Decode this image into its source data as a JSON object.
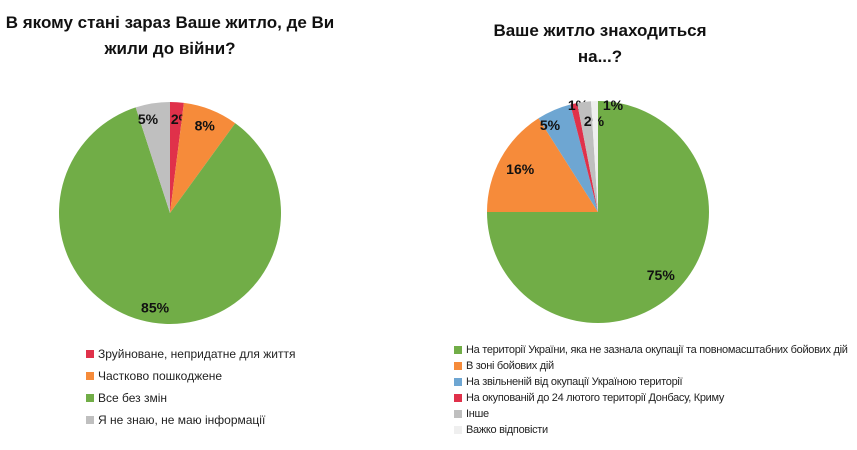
{
  "chart_data": [
    {
      "type": "pie",
      "title": "В якому стані зараз Ваше житло, де Ви жили до війни?",
      "legend_position": "bottom",
      "slices": [
        {
          "label": "Зруйноване, непридатне для життя",
          "value": 2,
          "data_label": "2%",
          "color": "#e0314a"
        },
        {
          "label": "Частково пошкоджене",
          "value": 8,
          "data_label": "8%",
          "color": "#f68b3a"
        },
        {
          "label": "Все без змін",
          "value": 85,
          "data_label": "85%",
          "color": "#71ad47"
        },
        {
          "label": "Я не знаю, не маю інформації",
          "value": 5,
          "data_label": "5%",
          "color": "#bfbfbf"
        }
      ]
    },
    {
      "type": "pie",
      "title": "Ваше житло знаходиться на...?",
      "legend_position": "bottom",
      "slices": [
        {
          "label": "На території України, яка не зазнала окупації та повномасштабних бойових дій",
          "value": 75,
          "data_label": "75%",
          "color": "#71ad47"
        },
        {
          "label": "В зоні бойових дій",
          "value": 16,
          "data_label": "16%",
          "color": "#f68b3a"
        },
        {
          "label": "На звільненій від окупації Україною території",
          "value": 5,
          "data_label": "5%",
          "color": "#6ea6d2"
        },
        {
          "label": "На окупованій до 24 лютого території Донбасу, Криму",
          "value": 1,
          "data_label": "1%",
          "color": "#e0314a"
        },
        {
          "label": "Інше",
          "value": 2,
          "data_label": "2%",
          "color": "#bfbfbf"
        },
        {
          "label": "Важко відповісти",
          "value": 1,
          "data_label": "1%",
          "color": "#efefef"
        }
      ]
    }
  ]
}
